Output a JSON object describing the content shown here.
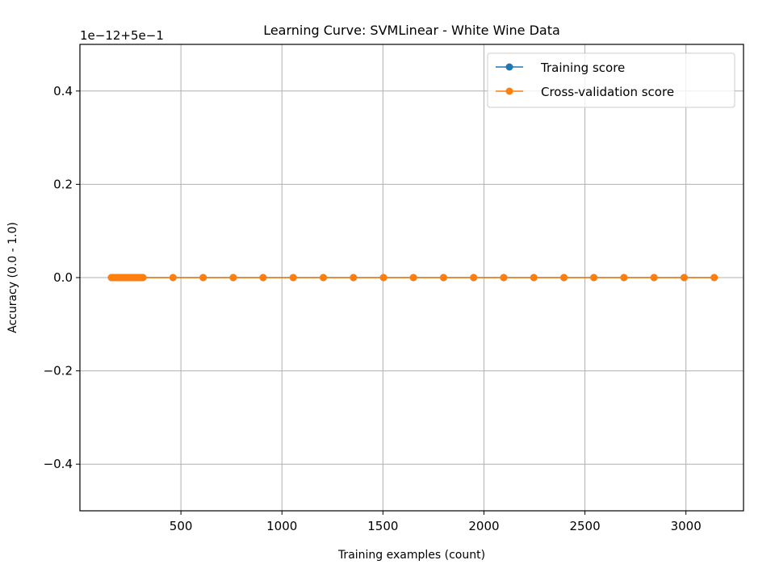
{
  "chart_data": {
    "type": "line",
    "title": "Learning Curve: SVMLinear - White Wine Data",
    "xlabel": "Training examples (count)",
    "ylabel": "Accuracy (0.0 - 1.0)",
    "offset_text": "1e−12+5e−1",
    "xlim": [
      0,
      3285
    ],
    "ylim": [
      -0.5,
      0.5
    ],
    "x_ticks": [
      500,
      1000,
      1500,
      2000,
      2500,
      3000
    ],
    "x_tick_labels": [
      "500",
      "1000",
      "1500",
      "2000",
      "2500",
      "3000"
    ],
    "y_ticks": [
      0.4,
      0.2,
      0.0,
      -0.2,
      -0.4
    ],
    "y_tick_labels": [
      "0.4",
      "0.2",
      "0.0",
      "−0.2",
      "−0.4"
    ],
    "grid": true,
    "legend_position": "top-right",
    "colors": {
      "train": "#1f77b4",
      "cv": "#ff7f0e"
    },
    "x": [
      156,
      164,
      171,
      179,
      187,
      195,
      203,
      210,
      218,
      226,
      234,
      242,
      249,
      257,
      265,
      273,
      281,
      288,
      296,
      304,
      312,
      461,
      610,
      759,
      907,
      1056,
      1205,
      1354,
      1503,
      1651,
      1800,
      1949,
      2098,
      2247,
      2396,
      2544,
      2693,
      2842,
      2991,
      3140
    ],
    "series": [
      {
        "name": "Training score",
        "key": "train",
        "values": [
          0,
          0,
          0,
          0,
          0,
          0,
          0,
          0,
          0,
          0,
          0,
          0,
          0,
          0,
          0,
          0,
          0,
          0,
          0,
          0,
          0,
          0,
          0,
          0,
          0,
          0,
          0,
          0,
          0,
          0,
          0,
          0,
          0,
          0,
          0,
          0,
          0,
          0,
          0,
          0
        ]
      },
      {
        "name": "Cross-validation score",
        "key": "cv",
        "values": [
          0,
          0,
          0,
          0,
          0,
          0,
          0,
          0,
          0,
          0,
          0,
          0,
          0,
          0,
          0,
          0,
          0,
          0,
          0,
          0,
          0,
          0,
          0,
          0,
          0,
          0,
          0,
          0,
          0,
          0,
          0,
          0,
          0,
          0,
          0,
          0,
          0,
          0,
          0,
          0
        ]
      }
    ]
  }
}
